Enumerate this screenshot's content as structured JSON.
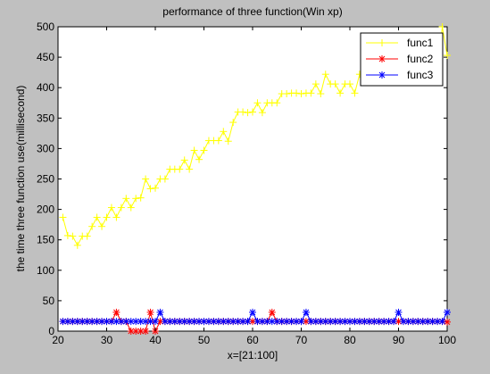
{
  "chart_data": {
    "type": "line",
    "title": "performance of three function(Win xp)",
    "xlabel": "x=[21:100]",
    "ylabel": "the time three function use(millisecond)",
    "xlim": [
      20,
      100
    ],
    "ylim": [
      0,
      500
    ],
    "xticks": [
      20,
      30,
      40,
      50,
      60,
      70,
      80,
      90,
      100
    ],
    "yticks": [
      0,
      50,
      100,
      150,
      200,
      250,
      300,
      350,
      400,
      450,
      500
    ],
    "grid": false,
    "legend_position": "top-right",
    "x": [
      21,
      22,
      23,
      24,
      25,
      26,
      27,
      28,
      29,
      30,
      31,
      32,
      33,
      34,
      35,
      36,
      37,
      38,
      39,
      40,
      41,
      42,
      43,
      44,
      45,
      46,
      47,
      48,
      49,
      50,
      51,
      52,
      53,
      54,
      55,
      56,
      57,
      58,
      59,
      60,
      61,
      62,
      63,
      64,
      65,
      66,
      67,
      68,
      69,
      70,
      71,
      72,
      73,
      74,
      75,
      76,
      77,
      78,
      79,
      80,
      81,
      82,
      83,
      84,
      85,
      86,
      87,
      88,
      89,
      90,
      91,
      92,
      93,
      94,
      95,
      96,
      97,
      98,
      99,
      100
    ],
    "series": [
      {
        "name": "func1",
        "color": "#ffff00",
        "marker": "+",
        "values": [
          187,
          157,
          156,
          141,
          156,
          156,
          172,
          187,
          172,
          187,
          203,
          187,
          203,
          218,
          203,
          218,
          219,
          250,
          234,
          235,
          250,
          250,
          266,
          266,
          266,
          281,
          266,
          297,
          282,
          297,
          313,
          313,
          313,
          328,
          312,
          343,
          360,
          360,
          359,
          360,
          375,
          359,
          375,
          375,
          375,
          390,
          390,
          391,
          391,
          390,
          391,
          391,
          406,
          390,
          422,
          406,
          406,
          391,
          406,
          406,
          391,
          422,
          422,
          422,
          422,
          422,
          422,
          422,
          422,
          422,
          422,
          422,
          422,
          422,
          422,
          422,
          422,
          422,
          500,
          453
        ]
      },
      {
        "name": "func2",
        "color": "#ff0000",
        "marker": "*",
        "values": [
          16,
          16,
          16,
          16,
          16,
          16,
          16,
          16,
          16,
          16,
          16,
          31,
          16,
          16,
          0,
          0,
          0,
          0,
          31,
          0,
          16,
          16,
          16,
          16,
          16,
          16,
          16,
          16,
          16,
          16,
          16,
          16,
          16,
          16,
          16,
          16,
          16,
          16,
          16,
          16,
          16,
          16,
          16,
          31,
          16,
          16,
          16,
          16,
          16,
          16,
          16,
          16,
          16,
          16,
          16,
          16,
          16,
          16,
          16,
          16,
          16,
          16,
          16,
          16,
          16,
          16,
          16,
          16,
          16,
          16,
          16,
          16,
          16,
          16,
          16,
          16,
          16,
          16,
          16,
          15
        ]
      },
      {
        "name": "func3",
        "color": "#0000ff",
        "marker": "*",
        "values": [
          16,
          16,
          16,
          16,
          16,
          16,
          16,
          16,
          16,
          16,
          16,
          16,
          16,
          16,
          16,
          16,
          16,
          16,
          16,
          16,
          31,
          16,
          16,
          16,
          16,
          16,
          16,
          16,
          16,
          16,
          16,
          16,
          16,
          16,
          16,
          16,
          16,
          16,
          16,
          31,
          16,
          16,
          16,
          16,
          16,
          16,
          16,
          16,
          16,
          16,
          31,
          16,
          16,
          16,
          16,
          16,
          16,
          16,
          16,
          16,
          16,
          16,
          16,
          16,
          16,
          16,
          16,
          16,
          16,
          31,
          16,
          16,
          16,
          16,
          16,
          16,
          16,
          16,
          16,
          31
        ]
      }
    ]
  }
}
